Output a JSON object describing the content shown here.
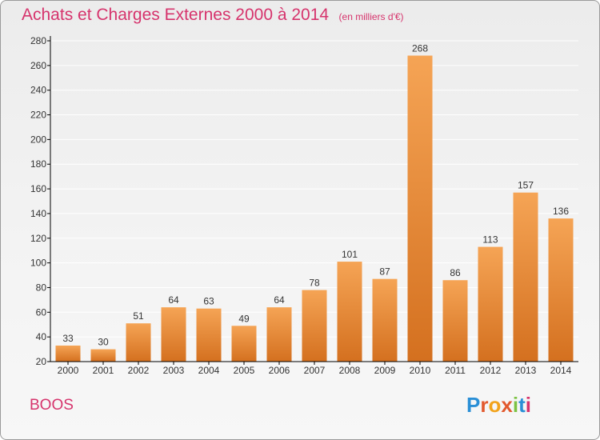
{
  "header": {
    "title": "Achats et Charges Externes 2000 à 2014",
    "unit": "(en milliers d'€)"
  },
  "footer": {
    "commune": "BOOS",
    "logo_letters": [
      "P",
      "r",
      "o",
      "x",
      "i",
      "t",
      "i"
    ],
    "logo_colors": [
      "#2a8fd6",
      "#e2592d",
      "#f2a31b",
      "#e2592d",
      "#7cc243",
      "#2a8fd6",
      "#d6336c"
    ]
  },
  "colors": {
    "title": "#d6336c",
    "bar_light": "#f5a455",
    "bar_dark": "#d4701f",
    "grid": "#ffffff",
    "axis": "#000000"
  },
  "chart_data": {
    "type": "bar",
    "title": "Achats et Charges Externes 2000 à 2014",
    "subtitle": "(en milliers d'€)",
    "categories": [
      "2000",
      "2001",
      "2002",
      "2003",
      "2004",
      "2005",
      "2006",
      "2007",
      "2008",
      "2009",
      "2010",
      "2011",
      "2012",
      "2013",
      "2014"
    ],
    "values": [
      33,
      30,
      51,
      64,
      63,
      49,
      64,
      78,
      101,
      87,
      268,
      86,
      113,
      157,
      136
    ],
    "ylim": [
      20,
      280
    ],
    "yticks": [
      20,
      40,
      60,
      80,
      100,
      120,
      140,
      160,
      180,
      200,
      220,
      240,
      260,
      280
    ],
    "grid": true,
    "data_labels": true
  }
}
